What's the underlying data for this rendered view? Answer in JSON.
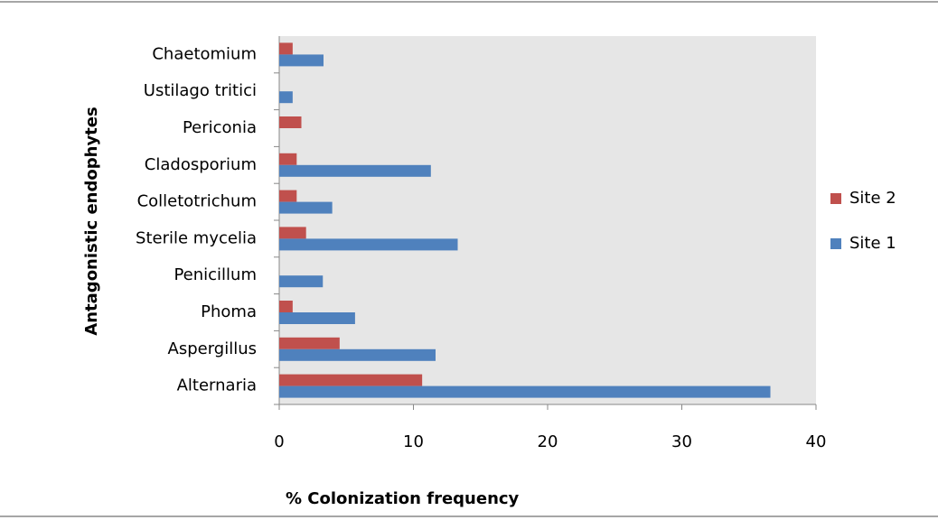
{
  "chart_data": {
    "type": "barh",
    "xlabel": "% Colonization frequency",
    "ylabel": "Antagonistic endophytes",
    "categories": [
      "Alternaria",
      "Aspergillus",
      "Phoma",
      "Penicillum",
      "Sterile mycelia",
      "Colletotrichum",
      "Cladosporium",
      "Periconia",
      "Ustilago tritici",
      "Chaetomium"
    ],
    "series": [
      {
        "name": "Site 2",
        "color": "#c0504d",
        "values": [
          10.65,
          4.5,
          1.0,
          0,
          2.0,
          1.3,
          1.3,
          1.65,
          0,
          1.0
        ]
      },
      {
        "name": "Site 1",
        "color": "#4f81bd",
        "values": [
          36.6,
          11.65,
          5.65,
          3.25,
          13.3,
          3.95,
          11.3,
          0,
          1.0,
          3.3
        ]
      }
    ],
    "xlim": [
      0,
      40
    ],
    "xticks": [
      0,
      10,
      20,
      30,
      40
    ],
    "grid": false,
    "legend": "right"
  }
}
